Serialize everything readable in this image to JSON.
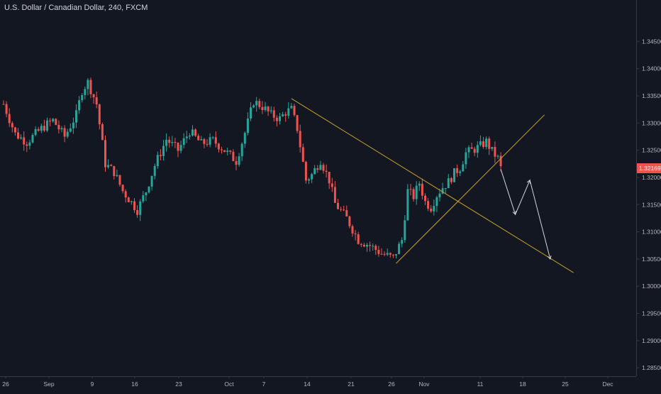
{
  "header": {
    "title": "U.S. Dollar / Canadian Dollar, 240, FXCM"
  },
  "colors": {
    "background": "#131722",
    "up_candle": "#26a69a",
    "down_candle": "#ef5350",
    "trendline": "#c9a227",
    "projection": "#d1d4dc",
    "price_label_bg": "#ef5350",
    "axis_line": "#363a45"
  },
  "chart_data": {
    "type": "candlestick",
    "title": "U.S. Dollar / Canadian Dollar, 240, FXCM",
    "x_tick_labels": [
      "26",
      "Sep",
      "9",
      "16",
      "23",
      "Oct",
      "7",
      "14",
      "21",
      "26",
      "Nov",
      "11",
      "18",
      "25",
      "Dec"
    ],
    "y_tick_labels": [
      "1.34500",
      "1.34000",
      "1.33500",
      "1.33000",
      "1.32500",
      "1.32000",
      "1.31500",
      "1.31000",
      "1.30500",
      "1.30000",
      "1.29500",
      "1.29000",
      "1.28500"
    ],
    "ylim": [
      1.2845,
      1.3487
    ],
    "current_price": "1.32169",
    "price_path": [
      [
        0,
        1.3335
      ],
      [
        4,
        1.328
      ],
      [
        8,
        1.3265
      ],
      [
        13,
        1.329
      ],
      [
        17,
        1.3305
      ],
      [
        21,
        1.3275
      ],
      [
        25,
        1.3315
      ],
      [
        27,
        1.336
      ],
      [
        29,
        1.3375
      ],
      [
        32,
        1.3335
      ],
      [
        35,
        1.3225
      ],
      [
        38,
        1.321
      ],
      [
        41,
        1.3175
      ],
      [
        46,
        1.314
      ],
      [
        49,
        1.3175
      ],
      [
        52,
        1.3222
      ],
      [
        56,
        1.327
      ],
      [
        60,
        1.325
      ],
      [
        64,
        1.3285
      ],
      [
        68,
        1.3262
      ],
      [
        72,
        1.3268
      ],
      [
        76,
        1.325
      ],
      [
        80,
        1.323
      ],
      [
        83,
        1.3282
      ],
      [
        86,
        1.334
      ],
      [
        89,
        1.333
      ],
      [
        92,
        1.3315
      ],
      [
        95,
        1.3308
      ],
      [
        97,
        1.332
      ],
      [
        99,
        1.3325
      ],
      [
        101,
        1.329
      ],
      [
        104,
        1.3195
      ],
      [
        106,
        1.3205
      ],
      [
        109,
        1.3232
      ],
      [
        112,
        1.3195
      ],
      [
        114,
        1.3152
      ],
      [
        118,
        1.3125
      ],
      [
        122,
        1.3085
      ],
      [
        126,
        1.3075
      ],
      [
        130,
        1.306
      ],
      [
        134,
        1.3052
      ],
      [
        135,
        1.3063
      ],
      [
        137,
        1.3085
      ],
      [
        139,
        1.3175
      ],
      [
        141,
        1.3165
      ],
      [
        143,
        1.319
      ],
      [
        145,
        1.3155
      ],
      [
        147,
        1.3145
      ],
      [
        149,
        1.3168
      ],
      [
        151,
        1.3182
      ],
      [
        153,
        1.3192
      ],
      [
        155,
        1.3208
      ],
      [
        157,
        1.3218
      ],
      [
        159,
        1.3245
      ],
      [
        162,
        1.3252
      ],
      [
        164,
        1.3258
      ],
      [
        166,
        1.3266
      ],
      [
        168,
        1.3248
      ],
      [
        170,
        1.3235
      ],
      [
        171,
        1.3217
      ]
    ],
    "trendlines": [
      {
        "name": "descending",
        "from": [
          99,
          1.3345
        ],
        "to": [
          196,
          1.3025
        ]
      },
      {
        "name": "ascending",
        "from": [
          135,
          1.3042
        ],
        "to": [
          186,
          1.3315
        ]
      }
    ],
    "projection_path": [
      [
        171,
        1.3215
      ],
      [
        176,
        1.3132
      ],
      [
        181,
        1.3195
      ],
      [
        188,
        1.305
      ]
    ]
  }
}
